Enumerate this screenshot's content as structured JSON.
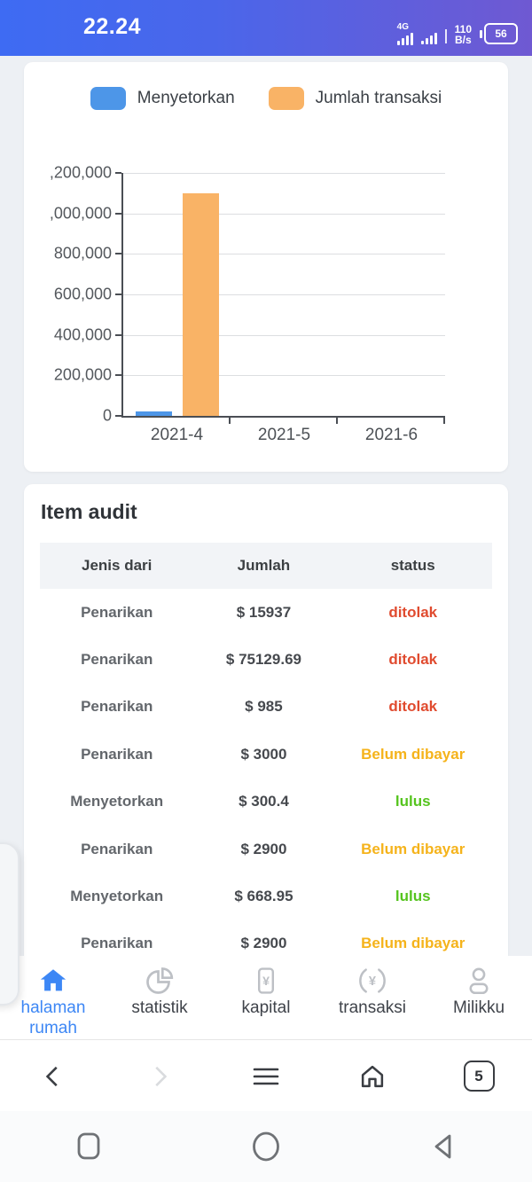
{
  "status_bar": {
    "time": "22.24",
    "network_label": "4G",
    "data_rate_top": "110",
    "data_rate_bottom": "B/s",
    "battery_level": "56"
  },
  "chart_data": {
    "type": "bar",
    "title": "",
    "categories": [
      "2021-4",
      "2021-5",
      "2021-6"
    ],
    "series": [
      {
        "name": "Menyetorkan",
        "color": "#4D96E8",
        "values": [
          20000,
          0,
          0
        ]
      },
      {
        "name": "Jumlah transaksi",
        "color": "#F9B366",
        "values": [
          1100000,
          0,
          0
        ]
      }
    ],
    "ylim": [
      0,
      1200000
    ],
    "y_ticks": [
      {
        "value": 0,
        "label": "0"
      },
      {
        "value": 200000,
        "label": "200,000"
      },
      {
        "value": 400000,
        "label": "400,000"
      },
      {
        "value": 600000,
        "label": "600,000"
      },
      {
        "value": 800000,
        "label": "800,000"
      },
      {
        "value": 1000000,
        "label": ",000,000"
      },
      {
        "value": 1200000,
        "label": ",200,000"
      }
    ],
    "grid": true,
    "legend_position": "top"
  },
  "audit": {
    "title": "Item audit",
    "columns": [
      "Jenis dari",
      "Jumlah",
      "status"
    ],
    "status_colors": {
      "ditolak": "#E04B2F",
      "Belum dibayar": "#F5B31B",
      "lulus": "#55C41E"
    },
    "rows": [
      {
        "type": "Penarikan",
        "amount": "$ 15937",
        "status": "ditolak"
      },
      {
        "type": "Penarikan",
        "amount": "$ 75129.69",
        "status": "ditolak"
      },
      {
        "type": "Penarikan",
        "amount": "$ 985",
        "status": "ditolak"
      },
      {
        "type": "Penarikan",
        "amount": "$ 3000",
        "status": "Belum dibayar"
      },
      {
        "type": "Menyetorkan",
        "amount": "$ 300.4",
        "status": "lulus"
      },
      {
        "type": "Penarikan",
        "amount": "$ 2900",
        "status": "Belum dibayar"
      },
      {
        "type": "Menyetorkan",
        "amount": "$ 668.95",
        "status": "lulus"
      },
      {
        "type": "Penarikan",
        "amount": "$ 2900",
        "status": "Belum dibayar"
      }
    ]
  },
  "tab_bar": {
    "active_color": "#3D87F5",
    "inactive_icon_color": "#BDC0C5",
    "items": [
      {
        "label": "halaman rumah",
        "icon": "home-icon",
        "active": true
      },
      {
        "label": "statistik",
        "icon": "pie-chart-icon",
        "active": false
      },
      {
        "label": "kapital",
        "icon": "yen-note-icon",
        "active": false
      },
      {
        "label": "transaksi",
        "icon": "yen-exchange-icon",
        "active": false
      },
      {
        "label": "Milikku",
        "icon": "person-icon",
        "active": false
      }
    ]
  },
  "browser_bar": {
    "tab_count": "5"
  }
}
